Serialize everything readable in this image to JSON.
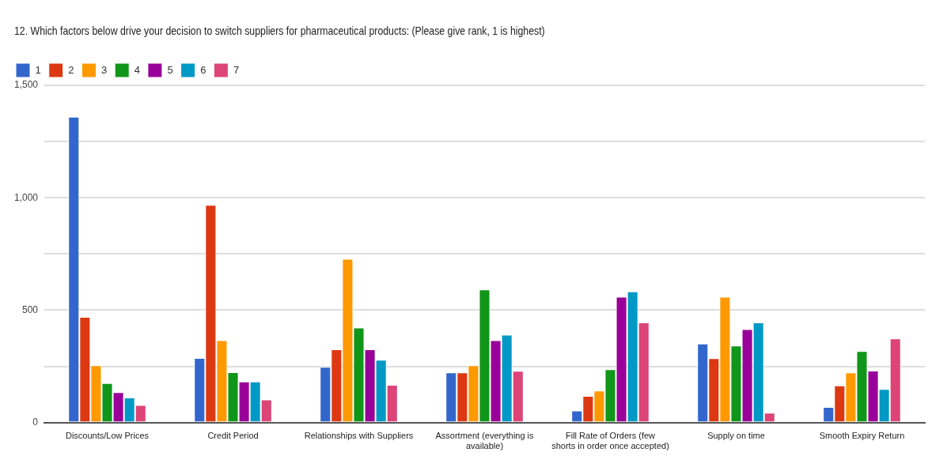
{
  "chart_data": {
    "type": "bar",
    "title": "12. Which factors below drive your decision to switch suppliers for pharmaceutical products:  (Please give rank, 1 is highest)",
    "categories": [
      "Discounts/Low Prices",
      "Credit Period",
      "Relationships with Suppliers",
      "Assortment (everything is available)",
      "Fill Rate of Orders (few shorts in order once accepted)",
      "Supply on time",
      "Smooth Expiry Return"
    ],
    "series": [
      {
        "name": "1",
        "color": "#3366cc",
        "values": [
          1360,
          287,
          247,
          223,
          53,
          351,
          69
        ]
      },
      {
        "name": "2",
        "color": "#dc3912",
        "values": [
          470,
          968,
          326,
          223,
          118,
          286,
          165
        ]
      },
      {
        "name": "3",
        "color": "#ff9900",
        "values": [
          254,
          366,
          728,
          254,
          142,
          559,
          223
        ]
      },
      {
        "name": "4",
        "color": "#109618",
        "values": [
          175,
          224,
          422,
          592,
          237,
          342,
          318
        ]
      },
      {
        "name": "5",
        "color": "#990099",
        "values": [
          135,
          182,
          326,
          366,
          559,
          415,
          231
        ]
      },
      {
        "name": "6",
        "color": "#0099c6",
        "values": [
          111,
          182,
          279,
          391,
          583,
          445,
          149
        ]
      },
      {
        "name": "7",
        "color": "#dd4477",
        "values": [
          78,
          102,
          167,
          230,
          445,
          43,
          374
        ]
      }
    ],
    "ylim": [
      0,
      1500
    ],
    "yticks": [
      0,
      {
        "value": 250,
        "label": null
      },
      500,
      {
        "value": 750,
        "label": null
      },
      {
        "value": 1000,
        "label": "1,000"
      },
      {
        "value": 1250,
        "label": null
      },
      {
        "value": 1500,
        "label": "1,500"
      }
    ],
    "grid": "y",
    "legend": "top left"
  }
}
